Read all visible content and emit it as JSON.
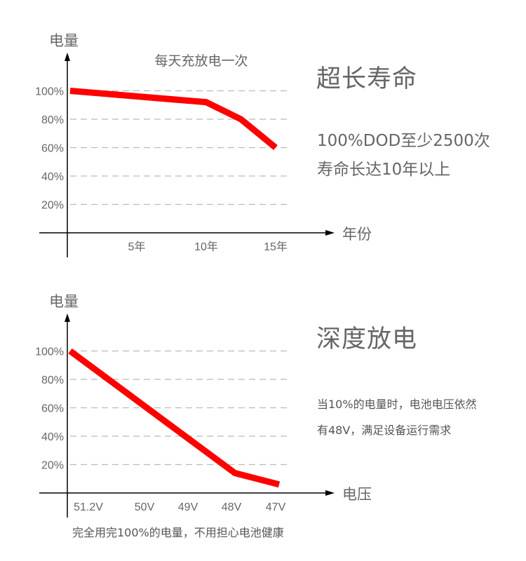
{
  "colors": {
    "line": "#ff0000",
    "grid": "#bbbbbb",
    "axis": "#000000",
    "text": "#666666"
  },
  "chart_data": [
    {
      "type": "line",
      "title": "每天充放电一次",
      "ylabel": "电量",
      "xlabel": "年份",
      "yticks": [
        "20%",
        "40%",
        "60%",
        "80%",
        "100%"
      ],
      "ytick_values": [
        20,
        40,
        60,
        80,
        100
      ],
      "xticks": [
        "5年",
        "10年",
        "15年"
      ],
      "xtick_values": [
        5,
        10,
        15
      ],
      "xlim": [
        0,
        16
      ],
      "ylim": [
        0,
        100
      ],
      "grid": "horizontal dashed",
      "series": [
        {
          "points": [
            [
              0,
              100
            ],
            [
              10,
              92
            ],
            [
              12.5,
              80
            ],
            [
              15,
              60
            ]
          ]
        }
      ]
    },
    {
      "type": "line",
      "ylabel": "电量",
      "xlabel": "电压",
      "yticks": [
        "20%",
        "40%",
        "60%",
        "80%",
        "100%"
      ],
      "ytick_values": [
        20,
        40,
        60,
        80,
        100
      ],
      "categories": [
        "51.2V",
        "50V",
        "49V",
        "48V",
        "47V"
      ],
      "ylim": [
        0,
        100
      ],
      "grid": "horizontal dashed",
      "series": [
        {
          "points": [
            [
              "start",
              100
            ],
            [
              "48V",
              14
            ],
            [
              "47V",
              6
            ]
          ]
        }
      ]
    }
  ],
  "top_panel": {
    "heading": "超长寿命",
    "line1": "100%DOD至少2500次",
    "line2": "寿命长达10年以上"
  },
  "bottom_panel": {
    "heading": "深度放电",
    "line1": "当10%的电量时，电池电压依然",
    "line2": "有48V，满足设备运行需求"
  },
  "footer": "完全用完100%的电量，不用担心电池健康"
}
